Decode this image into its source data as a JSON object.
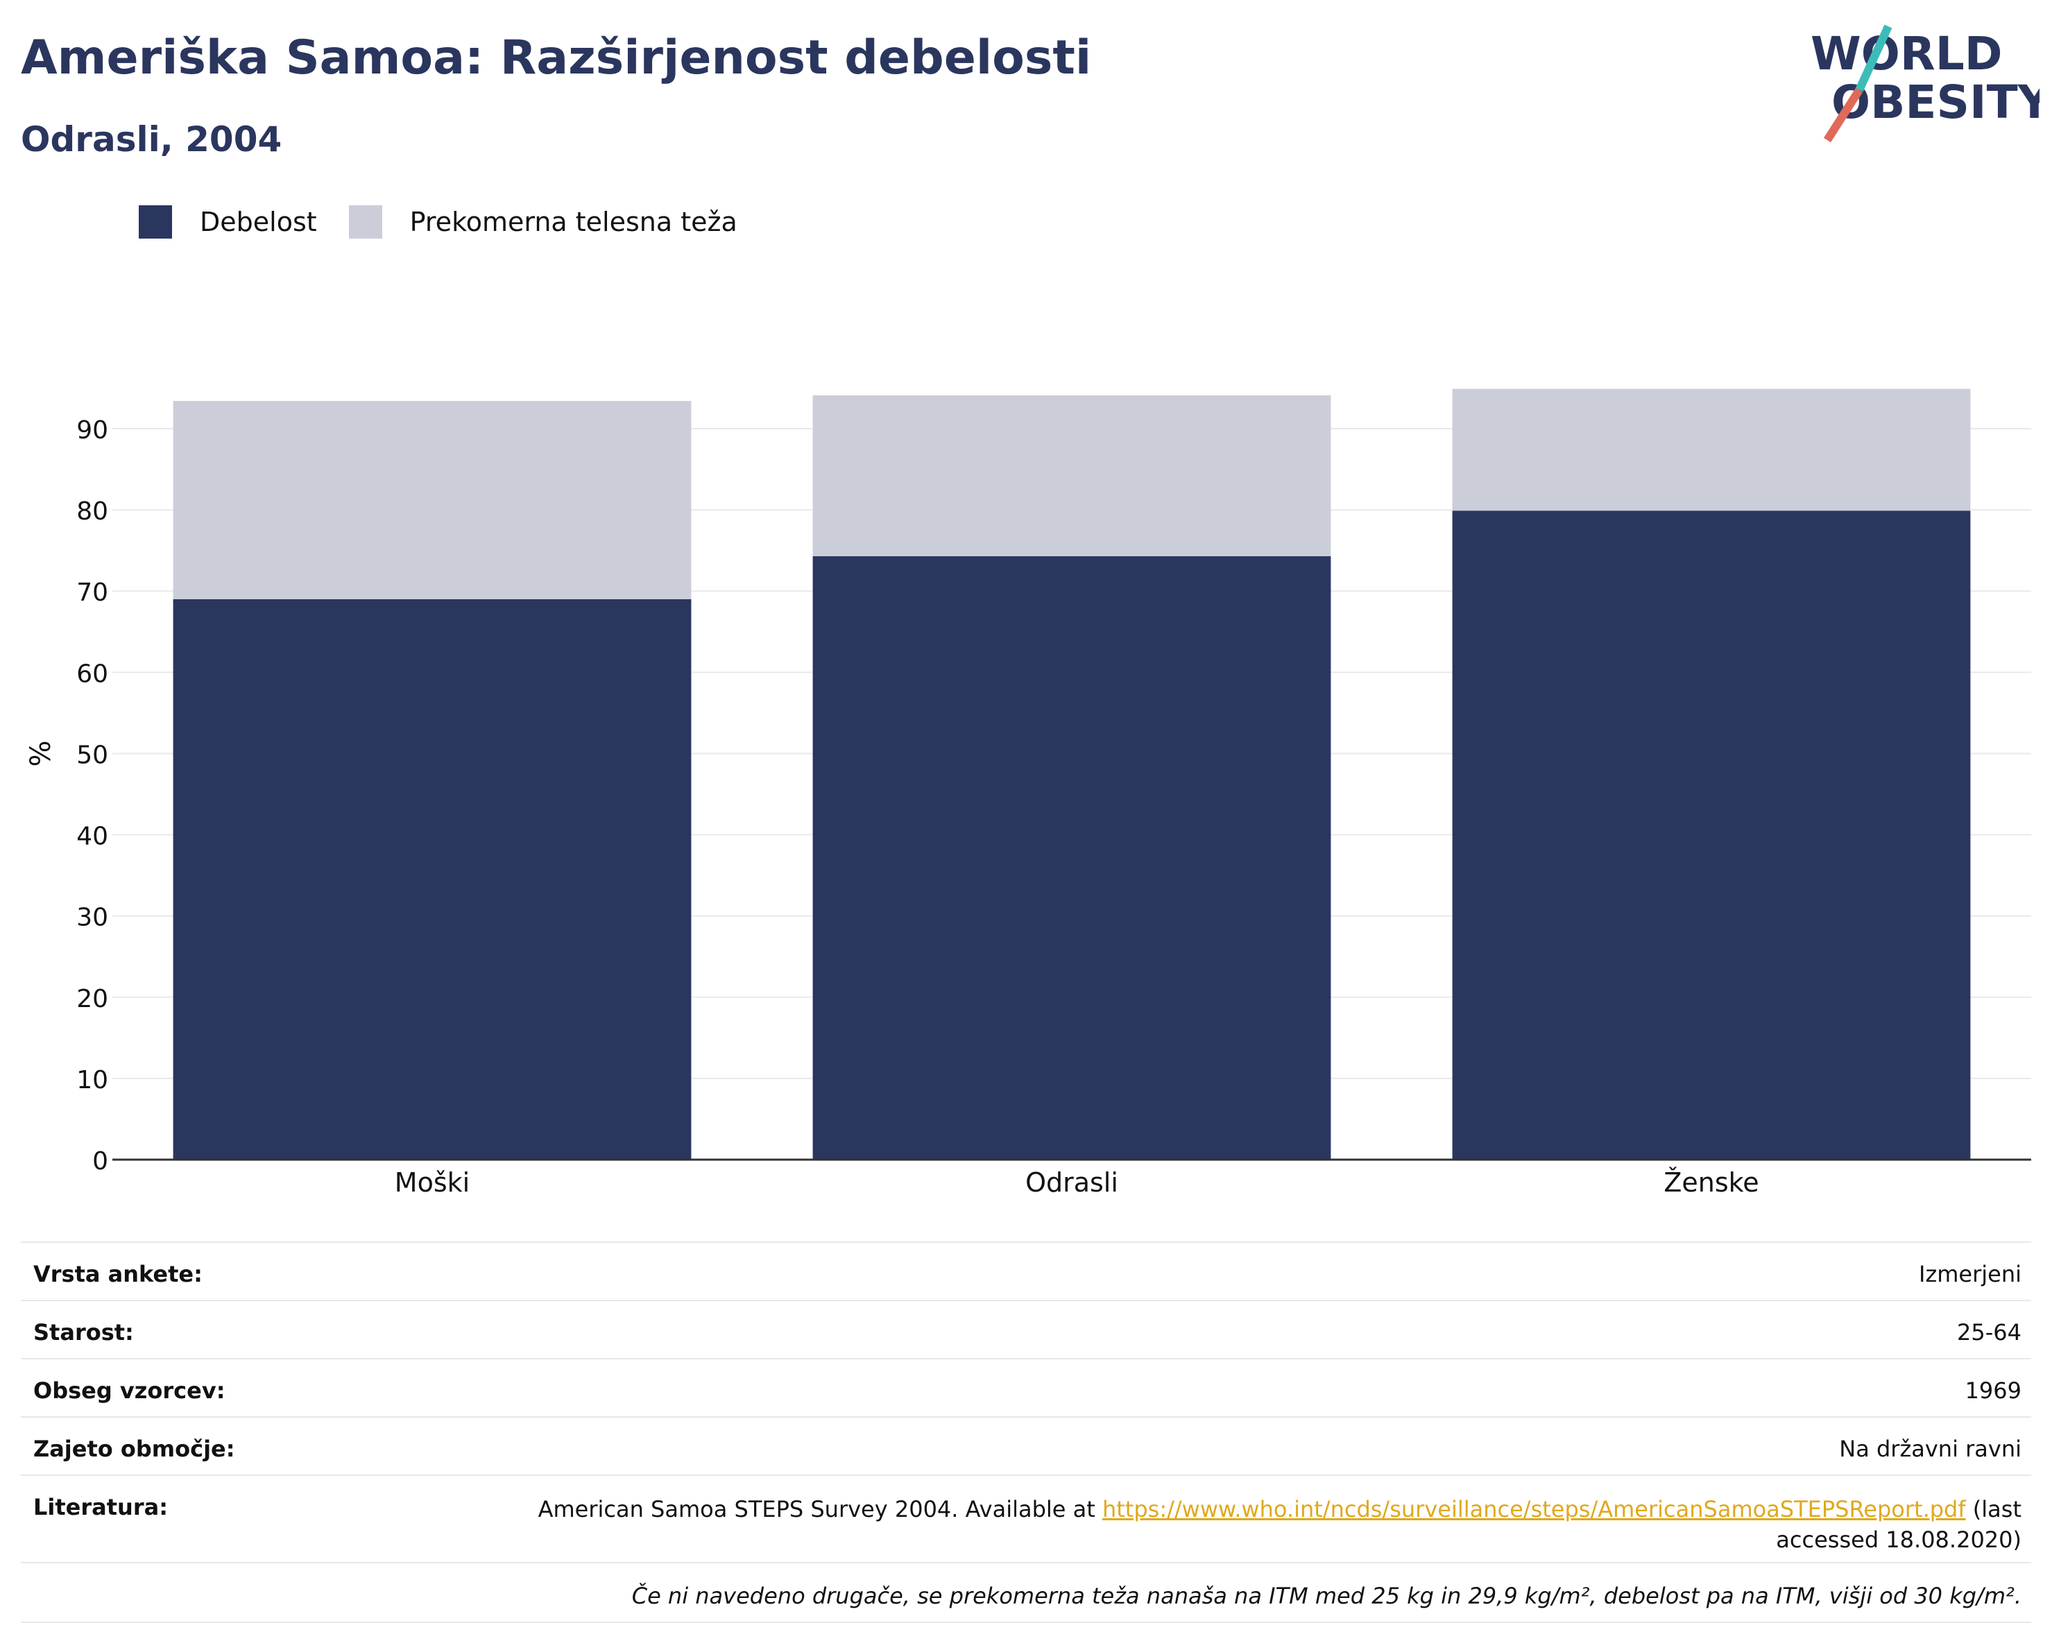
{
  "header": {
    "title": "Ameriška Samoa: Razširjenost debelosti",
    "subtitle": "Odrasli, 2004"
  },
  "logo": {
    "line1": "WORLD",
    "line2": "OBESITY"
  },
  "colors": {
    "obesity": "#2b365f",
    "overweight": "#cbcdd8",
    "accent_teal": "#3cbcb8",
    "accent_red": "#e0695a"
  },
  "chart_data": {
    "type": "bar",
    "stacked": true,
    "categories": [
      "Moški",
      "Odrasli",
      "Ženske"
    ],
    "series": [
      {
        "name": "Debelost",
        "values": [
          69.0,
          74.3,
          79.9
        ]
      },
      {
        "name": "Prekomerna telesna teža",
        "values": [
          24.4,
          19.8,
          15.0
        ]
      }
    ],
    "ylabel": "%",
    "ylim": [
      0,
      95
    ],
    "yticks": [
      0,
      10,
      20,
      30,
      40,
      50,
      60,
      70,
      80,
      90
    ],
    "grid": true,
    "legend_position": "top-left"
  },
  "info": {
    "survey_type_label": "Vrsta ankete:",
    "survey_type_value": "Izmerjeni",
    "age_label": "Starost:",
    "age_value": "25-64",
    "sample_label": "Obseg vzorcev:",
    "sample_value": "1969",
    "area_label": "Zajeto območje:",
    "area_value": "Na državni ravni",
    "ref_label": "Literatura:",
    "ref_text_before": "American Samoa STEPS Survey 2004. Available at ",
    "ref_link": "https://www.who.int/ncds/surveillance/steps/AmericanSamoaSTEPSReport.pdf",
    "ref_text_after": " (last accessed 18.08.2020)",
    "note": "Če ni navedeno drugače, se prekomerna teža nanaša na ITM med 25 kg in 29,9 kg/m², debelost pa na ITM, višji od 30 kg/m²."
  }
}
